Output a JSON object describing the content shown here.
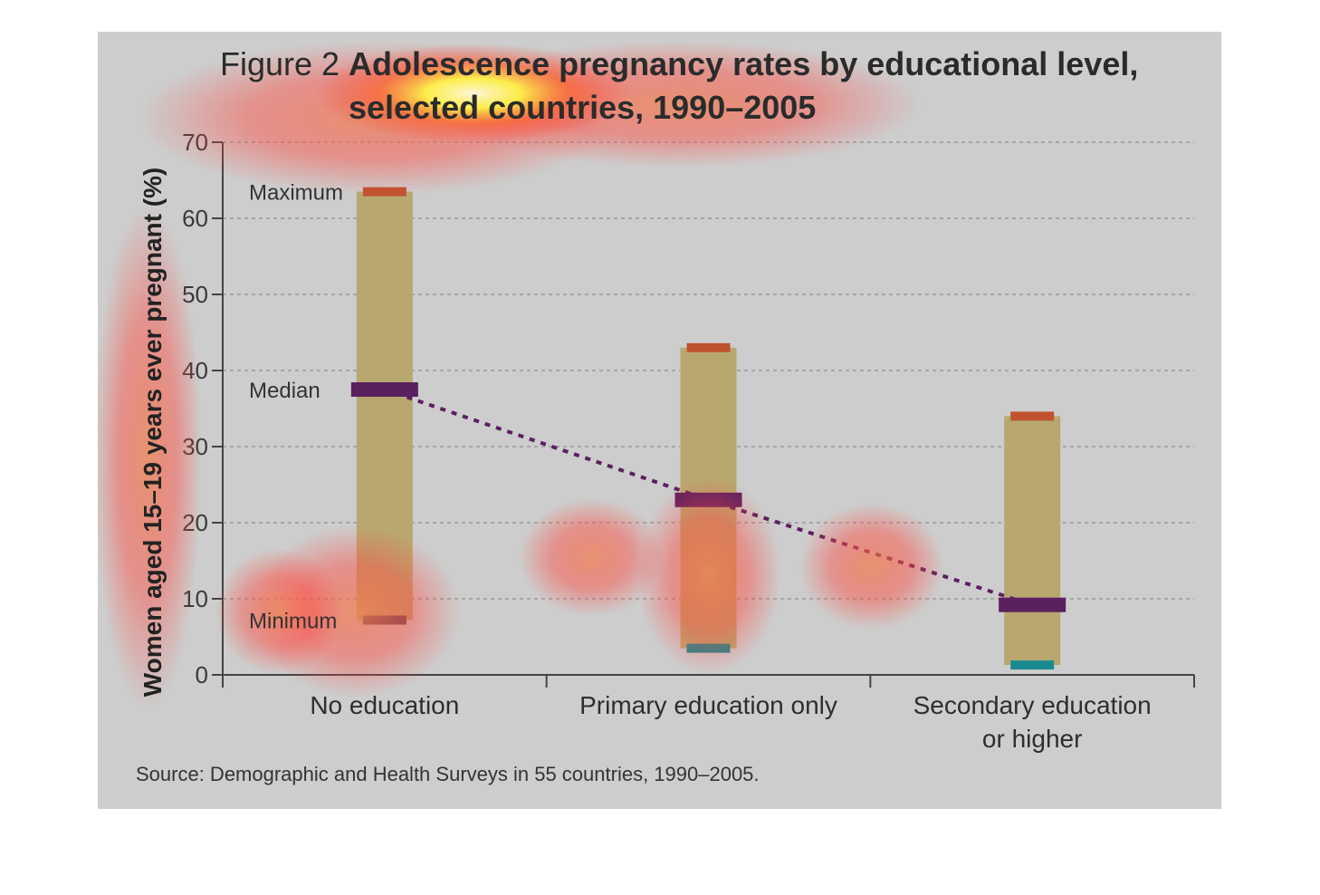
{
  "chart_data": {
    "type": "range_bar",
    "title_prefix": "Figure 2",
    "title_line1": "Adolescence pregnancy rates by educational level,",
    "title_line2": "selected countries, 1990–2005",
    "ylabel": "Women aged 15–19 years ever pregnant (%)",
    "xlabel": "",
    "ylim": [
      0,
      70
    ],
    "yticks": [
      0,
      10,
      20,
      30,
      40,
      50,
      60,
      70
    ],
    "grid": true,
    "categories": [
      [
        "No education"
      ],
      [
        "Primary education only"
      ],
      [
        "Secondary education",
        "or higher"
      ]
    ],
    "series": [
      {
        "name": "Maximum",
        "values": [
          63.5,
          43,
          34
        ]
      },
      {
        "name": "Median",
        "values": [
          37.5,
          23,
          9.2
        ]
      },
      {
        "name": "Minimum",
        "values": [
          7.2,
          3.5,
          1.3
        ]
      }
    ],
    "marker_labels": [
      "Maximum",
      "Median",
      "Minimum"
    ],
    "colors": {
      "range_bar": "#b8a870",
      "maximum": "#c0532e",
      "median": "#5a2060",
      "minimum_first": "#5a4a55",
      "minimum": "#1a8a90",
      "trend_line": "#5a2060",
      "axis": "#444444",
      "grid": "#9a9a9a"
    },
    "source": "Source: Demographic and Health Surveys in 55 countries, 1990–2005."
  }
}
